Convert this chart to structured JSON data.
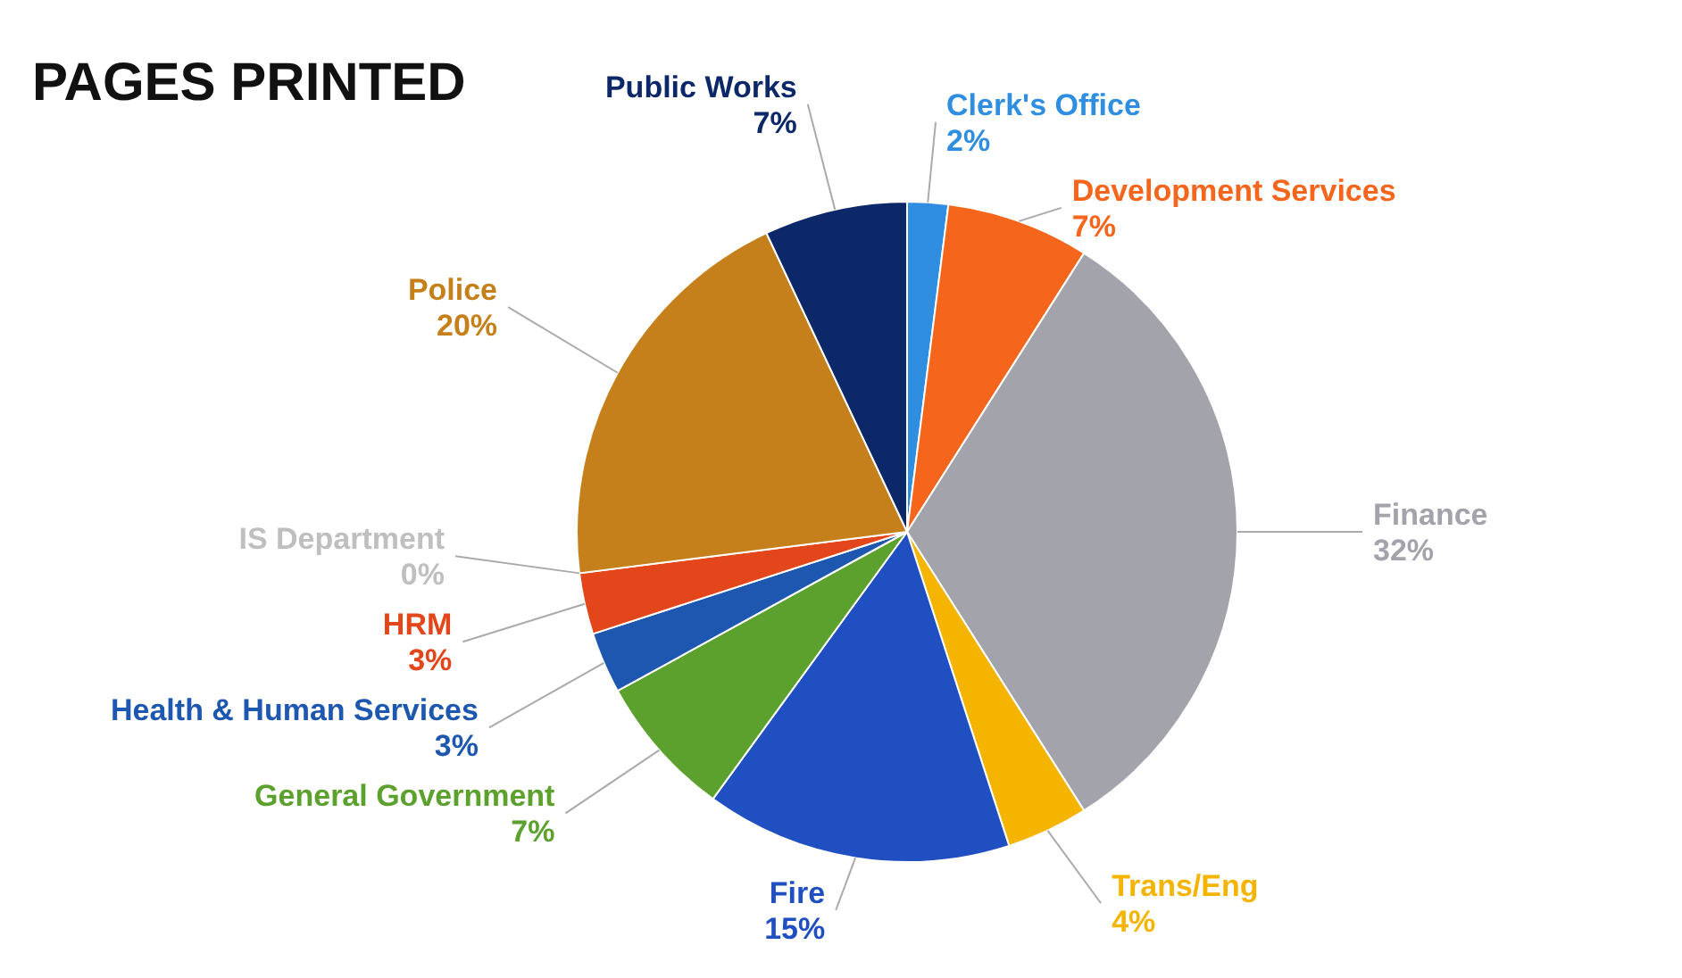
{
  "chart_data": {
    "type": "pie",
    "title": "PAGES PRINTED",
    "categories": [
      "Clerk's Office",
      "Development Services",
      "Finance",
      "Trans/Eng",
      "Fire",
      "General Government",
      "Health & Human Services",
      "HRM",
      "IS Department",
      "Police",
      "Public Works"
    ],
    "values": [
      2,
      7,
      32,
      4,
      15,
      7,
      3,
      3,
      0,
      20,
      7
    ],
    "value_labels": [
      "2%",
      "7%",
      "32%",
      "4%",
      "15%",
      "7%",
      "3%",
      "3%",
      "0%",
      "20%",
      "7%"
    ],
    "colors": [
      "#2f8ee0",
      "#f5651c",
      "#a3a3ab",
      "#f5b400",
      "#1f4fc0",
      "#5ca12e",
      "#1d57b0",
      "#e2461a",
      "#bfbfbf",
      "#c5801c",
      "#0c2868"
    ]
  }
}
